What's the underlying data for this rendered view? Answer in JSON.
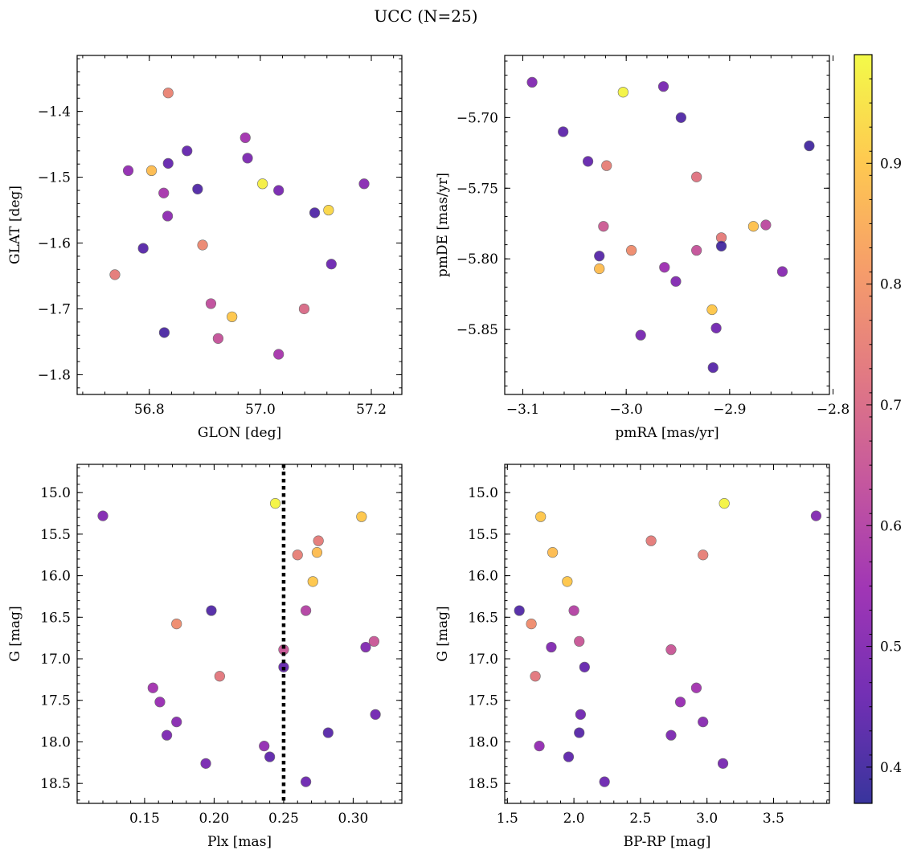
{
  "figure": {
    "suptitle": "UCC (N=25)"
  },
  "colorbar": {
    "cmap": "plasma",
    "range": [
      0.37,
      0.99
    ],
    "ticks": [
      0.4,
      0.5,
      0.6,
      0.7,
      0.8,
      0.9
    ],
    "tick_labels": [
      "0.4",
      "0.5",
      "0.6",
      "0.7",
      "0.8",
      "0.9"
    ],
    "colors": [
      "#0d0887",
      "#5302a3",
      "#8b0aa5",
      "#b83289",
      "#db5c68",
      "#f48849",
      "#febd2a",
      "#f0f921"
    ]
  },
  "chart_data": [
    {
      "type": "scatter",
      "id": "glon-glat",
      "xlabel": "GLON [deg]",
      "ylabel": "GLAT [deg]",
      "xlim": [
        56.67,
        57.255
      ],
      "ylim": [
        -1.83,
        -1.315
      ],
      "y_inverted": false,
      "xticks": [
        56.8,
        57.0,
        57.2
      ],
      "xtick_labels": [
        "56.8",
        "57.0",
        "57.2"
      ],
      "yticks": [
        -1.8,
        -1.7,
        -1.6,
        -1.5,
        -1.4
      ],
      "ytick_labels": [
        "−1.8",
        "−1.7",
        "−1.6",
        "−1.5",
        "−1.4"
      ],
      "points": [
        {
          "x": 56.834,
          "y": -1.372,
          "c": 0.76
        },
        {
          "x": 56.973,
          "y": -1.44,
          "c": 0.56
        },
        {
          "x": 56.868,
          "y": -1.46,
          "c": 0.45
        },
        {
          "x": 56.977,
          "y": -1.471,
          "c": 0.49
        },
        {
          "x": 56.834,
          "y": -1.479,
          "c": 0.45
        },
        {
          "x": 56.762,
          "y": -1.49,
          "c": 0.53
        },
        {
          "x": 56.804,
          "y": -1.49,
          "c": 0.88
        },
        {
          "x": 57.004,
          "y": -1.51,
          "c": 0.97
        },
        {
          "x": 57.187,
          "y": -1.51,
          "c": 0.51
        },
        {
          "x": 56.887,
          "y": -1.518,
          "c": 0.42
        },
        {
          "x": 57.033,
          "y": -1.52,
          "c": 0.48
        },
        {
          "x": 56.826,
          "y": -1.524,
          "c": 0.57
        },
        {
          "x": 57.123,
          "y": -1.55,
          "c": 0.93
        },
        {
          "x": 57.098,
          "y": -1.554,
          "c": 0.42
        },
        {
          "x": 56.833,
          "y": -1.559,
          "c": 0.52
        },
        {
          "x": 56.896,
          "y": -1.603,
          "c": 0.77
        },
        {
          "x": 56.789,
          "y": -1.608,
          "c": 0.43
        },
        {
          "x": 57.128,
          "y": -1.632,
          "c": 0.46
        },
        {
          "x": 56.738,
          "y": -1.648,
          "c": 0.74
        },
        {
          "x": 56.911,
          "y": -1.692,
          "c": 0.63
        },
        {
          "x": 57.079,
          "y": -1.7,
          "c": 0.7
        },
        {
          "x": 56.949,
          "y": -1.712,
          "c": 0.9
        },
        {
          "x": 56.827,
          "y": -1.736,
          "c": 0.41
        },
        {
          "x": 56.924,
          "y": -1.745,
          "c": 0.64
        },
        {
          "x": 57.033,
          "y": -1.769,
          "c": 0.57
        }
      ]
    },
    {
      "type": "scatter",
      "id": "pmra-pmde",
      "xlabel": "pmRA [mas/yr]",
      "ylabel": "pmDE [mas/yr]",
      "xlim": [
        -3.1175,
        -2.8035
      ],
      "ylim": [
        -5.896,
        -5.656
      ],
      "y_inverted": false,
      "xticks": [
        -3.1,
        -3.0,
        -2.9,
        -2.8
      ],
      "xtick_labels": [
        "−3.1",
        "−3.0",
        "−2.9",
        "−2.8"
      ],
      "yticks": [
        -5.85,
        -5.8,
        -5.75,
        -5.7
      ],
      "ytick_labels": [
        "−5.85",
        "−5.80",
        "−5.75",
        "−5.70"
      ],
      "points": [
        {
          "x": -3.091,
          "y": -5.675,
          "c": 0.5
        },
        {
          "x": -3.003,
          "y": -5.682,
          "c": 0.98
        },
        {
          "x": -2.964,
          "y": -5.678,
          "c": 0.48
        },
        {
          "x": -2.947,
          "y": -5.7,
          "c": 0.42
        },
        {
          "x": -3.061,
          "y": -5.71,
          "c": 0.44
        },
        {
          "x": -2.823,
          "y": -5.72,
          "c": 0.4
        },
        {
          "x": -3.037,
          "y": -5.731,
          "c": 0.45
        },
        {
          "x": -3.019,
          "y": -5.734,
          "c": 0.75
        },
        {
          "x": -2.932,
          "y": -5.742,
          "c": 0.72
        },
        {
          "x": -3.022,
          "y": -5.777,
          "c": 0.66
        },
        {
          "x": -2.877,
          "y": -5.777,
          "c": 0.89
        },
        {
          "x": -2.865,
          "y": -5.776,
          "c": 0.62
        },
        {
          "x": -2.908,
          "y": -5.785,
          "c": 0.74
        },
        {
          "x": -2.908,
          "y": -5.791,
          "c": 0.4
        },
        {
          "x": -2.995,
          "y": -5.794,
          "c": 0.78
        },
        {
          "x": -2.932,
          "y": -5.794,
          "c": 0.64
        },
        {
          "x": -3.026,
          "y": -5.798,
          "c": 0.43
        },
        {
          "x": -2.963,
          "y": -5.806,
          "c": 0.55
        },
        {
          "x": -3.026,
          "y": -5.807,
          "c": 0.88
        },
        {
          "x": -2.849,
          "y": -5.809,
          "c": 0.51
        },
        {
          "x": -2.952,
          "y": -5.816,
          "c": 0.5
        },
        {
          "x": -2.917,
          "y": -5.836,
          "c": 0.9
        },
        {
          "x": -2.913,
          "y": -5.849,
          "c": 0.47
        },
        {
          "x": -2.986,
          "y": -5.854,
          "c": 0.48
        },
        {
          "x": -2.916,
          "y": -5.877,
          "c": 0.43
        }
      ]
    },
    {
      "type": "scatter",
      "id": "plx-g",
      "xlabel": "Plx [mas]",
      "ylabel": "G [mag]",
      "xlim": [
        0.1015,
        0.335
      ],
      "ylim": [
        18.74,
        14.66
      ],
      "y_inverted": true,
      "xticks": [
        0.15,
        0.2,
        0.25,
        0.3
      ],
      "xtick_labels": [
        "0.15",
        "0.20",
        "0.25",
        "0.30"
      ],
      "yticks": [
        15.0,
        15.5,
        16.0,
        16.5,
        17.0,
        17.5,
        18.0,
        18.5
      ],
      "ytick_labels": [
        "15.0",
        "15.5",
        "16.0",
        "16.5",
        "17.0",
        "17.5",
        "18.0",
        "18.5"
      ],
      "vline": {
        "x": 0.25,
        "style": "dotted"
      },
      "points": [
        {
          "x": 0.244,
          "y": 15.13,
          "c": 0.98
        },
        {
          "x": 0.12,
          "y": 15.28,
          "c": 0.5
        },
        {
          "x": 0.306,
          "y": 15.29,
          "c": 0.9
        },
        {
          "x": 0.275,
          "y": 15.58,
          "c": 0.74
        },
        {
          "x": 0.274,
          "y": 15.72,
          "c": 0.88
        },
        {
          "x": 0.26,
          "y": 15.75,
          "c": 0.75
        },
        {
          "x": 0.271,
          "y": 16.07,
          "c": 0.9
        },
        {
          "x": 0.198,
          "y": 16.42,
          "c": 0.42
        },
        {
          "x": 0.266,
          "y": 16.42,
          "c": 0.6
        },
        {
          "x": 0.173,
          "y": 16.58,
          "c": 0.78
        },
        {
          "x": 0.315,
          "y": 16.79,
          "c": 0.65
        },
        {
          "x": 0.309,
          "y": 16.86,
          "c": 0.5
        },
        {
          "x": 0.25,
          "y": 16.89,
          "c": 0.65
        },
        {
          "x": 0.25,
          "y": 17.1,
          "c": 0.45
        },
        {
          "x": 0.204,
          "y": 17.21,
          "c": 0.73
        },
        {
          "x": 0.156,
          "y": 17.35,
          "c": 0.56
        },
        {
          "x": 0.161,
          "y": 17.52,
          "c": 0.54
        },
        {
          "x": 0.316,
          "y": 17.67,
          "c": 0.47
        },
        {
          "x": 0.173,
          "y": 17.76,
          "c": 0.51
        },
        {
          "x": 0.282,
          "y": 17.89,
          "c": 0.43
        },
        {
          "x": 0.166,
          "y": 17.92,
          "c": 0.49
        },
        {
          "x": 0.236,
          "y": 18.05,
          "c": 0.53
        },
        {
          "x": 0.24,
          "y": 18.18,
          "c": 0.44
        },
        {
          "x": 0.194,
          "y": 18.26,
          "c": 0.48
        },
        {
          "x": 0.266,
          "y": 18.48,
          "c": 0.46
        }
      ]
    },
    {
      "type": "scatter",
      "id": "bprp-g",
      "xlabel": "BP-RP [mag]",
      "ylabel": "G [mag]",
      "xlim": [
        1.48,
        3.92
      ],
      "ylim": [
        18.74,
        14.66
      ],
      "y_inverted": true,
      "xticks": [
        1.5,
        2.0,
        2.5,
        3.0,
        3.5
      ],
      "xtick_labels": [
        "1.5",
        "2.0",
        "2.5",
        "3.0",
        "3.5"
      ],
      "yticks": [
        15.0,
        15.5,
        16.0,
        16.5,
        17.0,
        17.5,
        18.0,
        18.5
      ],
      "ytick_labels": [
        "15.0",
        "15.5",
        "16.0",
        "16.5",
        "17.0",
        "17.5",
        "18.0",
        "18.5"
      ],
      "points": [
        {
          "x": 3.13,
          "y": 15.13,
          "c": 0.98
        },
        {
          "x": 3.82,
          "y": 15.28,
          "c": 0.5
        },
        {
          "x": 1.75,
          "y": 15.29,
          "c": 0.9
        },
        {
          "x": 2.58,
          "y": 15.58,
          "c": 0.74
        },
        {
          "x": 1.84,
          "y": 15.72,
          "c": 0.88
        },
        {
          "x": 2.97,
          "y": 15.75,
          "c": 0.75
        },
        {
          "x": 1.95,
          "y": 16.07,
          "c": 0.9
        },
        {
          "x": 1.59,
          "y": 16.42,
          "c": 0.42
        },
        {
          "x": 2.0,
          "y": 16.42,
          "c": 0.6
        },
        {
          "x": 1.68,
          "y": 16.58,
          "c": 0.78
        },
        {
          "x": 2.04,
          "y": 16.79,
          "c": 0.65
        },
        {
          "x": 1.83,
          "y": 16.86,
          "c": 0.5
        },
        {
          "x": 2.73,
          "y": 16.89,
          "c": 0.65
        },
        {
          "x": 2.08,
          "y": 17.1,
          "c": 0.45
        },
        {
          "x": 1.71,
          "y": 17.21,
          "c": 0.73
        },
        {
          "x": 2.92,
          "y": 17.35,
          "c": 0.56
        },
        {
          "x": 2.8,
          "y": 17.52,
          "c": 0.54
        },
        {
          "x": 2.05,
          "y": 17.67,
          "c": 0.47
        },
        {
          "x": 2.97,
          "y": 17.76,
          "c": 0.51
        },
        {
          "x": 2.04,
          "y": 17.89,
          "c": 0.43
        },
        {
          "x": 2.73,
          "y": 17.92,
          "c": 0.49
        },
        {
          "x": 1.74,
          "y": 18.05,
          "c": 0.53
        },
        {
          "x": 1.96,
          "y": 18.18,
          "c": 0.44
        },
        {
          "x": 3.12,
          "y": 18.26,
          "c": 0.48
        },
        {
          "x": 2.23,
          "y": 18.48,
          "c": 0.46
        }
      ]
    }
  ]
}
